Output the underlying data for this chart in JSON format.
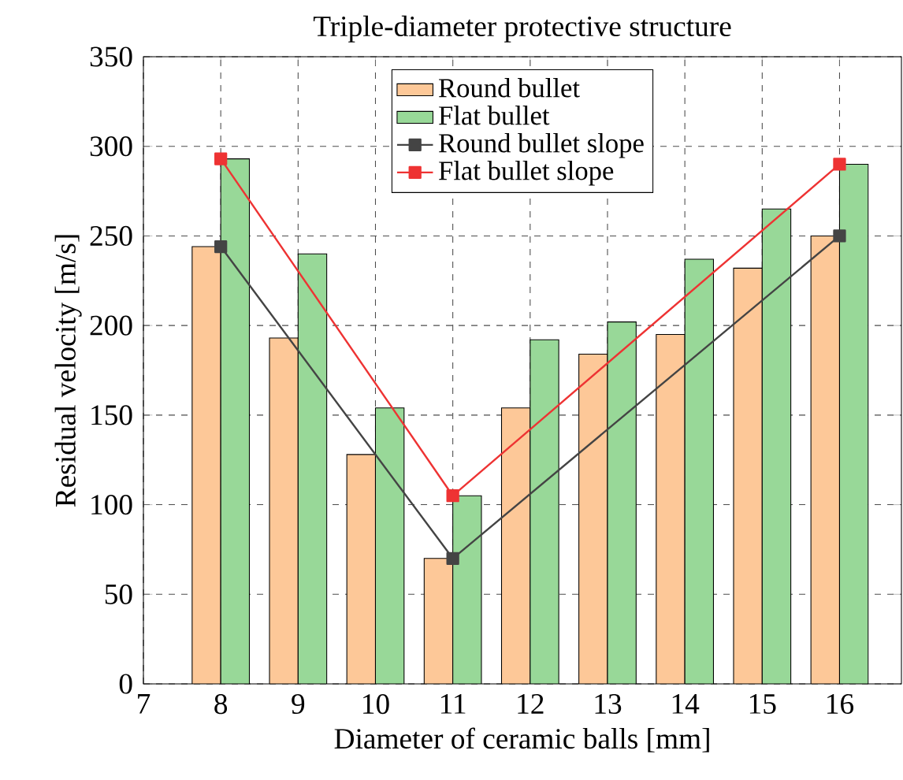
{
  "chart_data": {
    "type": "bar",
    "title": "Triple-diameter protective structure",
    "xlabel": "Diameter of ceramic balls [mm]",
    "ylabel": "Residual velocity [m/s]",
    "x": [
      8,
      9,
      10,
      11,
      12,
      13,
      14,
      15,
      16
    ],
    "xlim": [
      7,
      16.8
    ],
    "xticks": [
      7,
      8,
      9,
      10,
      11,
      12,
      13,
      14,
      15,
      16
    ],
    "ylim": [
      0,
      350
    ],
    "yticks": [
      0,
      50,
      100,
      150,
      200,
      250,
      300,
      350
    ],
    "grid": true,
    "legend": "top",
    "series": [
      {
        "name": "Round bullet",
        "color": "#fdc898",
        "values": [
          244,
          193,
          128,
          70,
          154,
          184,
          195,
          232,
          250
        ]
      },
      {
        "name": "Flat bullet",
        "color": "#98d898",
        "values": [
          293,
          240,
          154,
          105,
          192,
          202,
          237,
          265,
          290
        ]
      },
      {
        "name": "Round bullet slope",
        "type": "line",
        "marker": "square",
        "color": "#444444",
        "x": [
          8,
          11,
          16
        ],
        "values": [
          244,
          70,
          250
        ]
      },
      {
        "name": "Flat bullet slope",
        "type": "line",
        "marker": "square",
        "color": "#ee3333",
        "x": [
          8,
          11,
          16
        ],
        "values": [
          293,
          105,
          290
        ]
      }
    ]
  }
}
